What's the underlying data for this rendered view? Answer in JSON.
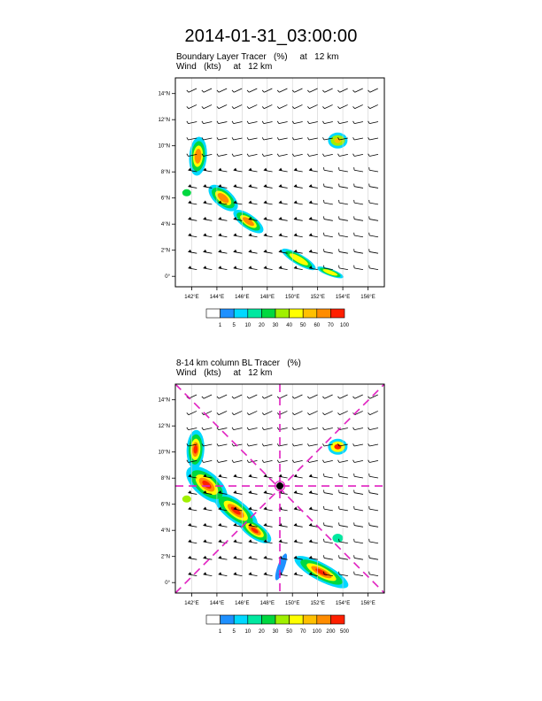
{
  "title": "2014-01-31_03:00:00",
  "panel1": {
    "title_line1": "Boundary Layer Tracer   (%)     at   12 km",
    "title_line2": "Wind   (kts)     at   12 km",
    "legend_labels": [
      "1",
      "5",
      "10",
      "20",
      "30",
      "40",
      "50",
      "60",
      "70",
      "100"
    ],
    "legend_colors": [
      "#ffffff",
      "#1e90ff",
      "#00d8ff",
      "#00e8a0",
      "#00d840",
      "#a0f000",
      "#ffff00",
      "#ffc000",
      "#ff8c00",
      "#ff2000"
    ]
  },
  "panel2": {
    "title_line1": "8-14 km column BL Tracer   (%)",
    "title_line2": "Wind   (kts)     at   12 km",
    "legend_labels": [
      "1",
      "5",
      "10",
      "20",
      "30",
      "50",
      "70",
      "100",
      "200",
      "500"
    ],
    "legend_colors": [
      "#ffffff",
      "#1e90ff",
      "#00d8ff",
      "#00e8a0",
      "#00d840",
      "#a0f000",
      "#ffff00",
      "#ffc000",
      "#ff8c00",
      "#ff2000"
    ]
  },
  "axes": {
    "lon_labels": [
      "142°E",
      "144°E",
      "146°E",
      "148°E",
      "150°E",
      "152°E",
      "154°E",
      "156°E"
    ],
    "lat_labels": [
      "0°",
      "2°N",
      "4°N",
      "6°N",
      "8°N",
      "10°N",
      "12°N",
      "14°N"
    ]
  },
  "colors": {
    "crosshair": "#e020c0",
    "frame": "#000000"
  }
}
